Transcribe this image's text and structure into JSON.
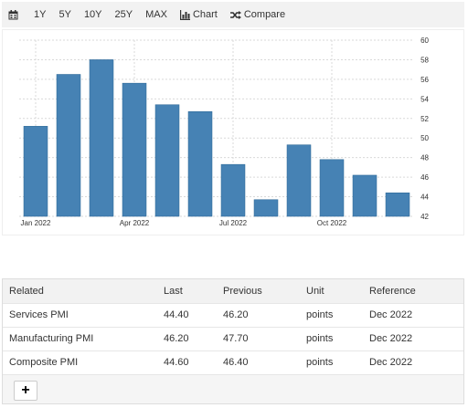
{
  "toolbar": {
    "calendar_icon": "calendar-icon",
    "ranges": [
      "1Y",
      "5Y",
      "10Y",
      "25Y",
      "MAX"
    ],
    "chart_label": "Chart",
    "chart_icon": "bar-chart-icon",
    "compare_label": "Compare",
    "compare_icon": "shuffle-icon"
  },
  "colors": {
    "bar": "#4682b4",
    "grid": "#d9d9d9",
    "toolbar_bg": "#f2f2f2",
    "table_header_bg": "#f2f2f2"
  },
  "chart_data": {
    "type": "bar",
    "categories": [
      "Jan 2022",
      "Feb 2022",
      "Mar 2022",
      "Apr 2022",
      "May 2022",
      "Jun 2022",
      "Jul 2022",
      "Aug 2022",
      "Sep 2022",
      "Oct 2022",
      "Nov 2022",
      "Dec 2022"
    ],
    "values": [
      51.2,
      56.5,
      58.0,
      55.6,
      53.4,
      52.7,
      47.3,
      43.7,
      49.3,
      47.8,
      46.2,
      44.4
    ],
    "x_tick_labels": [
      {
        "index": 0,
        "label": "Jan 2022"
      },
      {
        "index": 3,
        "label": "Apr 2022"
      },
      {
        "index": 6,
        "label": "Jul 2022"
      },
      {
        "index": 9,
        "label": "Oct 2022"
      }
    ],
    "y_ticks": [
      42,
      44,
      46,
      48,
      50,
      52,
      54,
      56,
      58,
      60
    ],
    "ylim": [
      42,
      60
    ],
    "y_axis_side": "right",
    "grid": true,
    "title": "",
    "xlabel": "",
    "ylabel": ""
  },
  "related": {
    "headers": [
      "Related",
      "Last",
      "Previous",
      "Unit",
      "Reference"
    ],
    "rows": [
      [
        "Services PMI",
        "44.40",
        "46.20",
        "points",
        "Dec 2022"
      ],
      [
        "Manufacturing PMI",
        "46.20",
        "47.70",
        "points",
        "Dec 2022"
      ],
      [
        "Composite PMI",
        "44.60",
        "46.40",
        "points",
        "Dec 2022"
      ]
    ],
    "add_label": "+"
  }
}
